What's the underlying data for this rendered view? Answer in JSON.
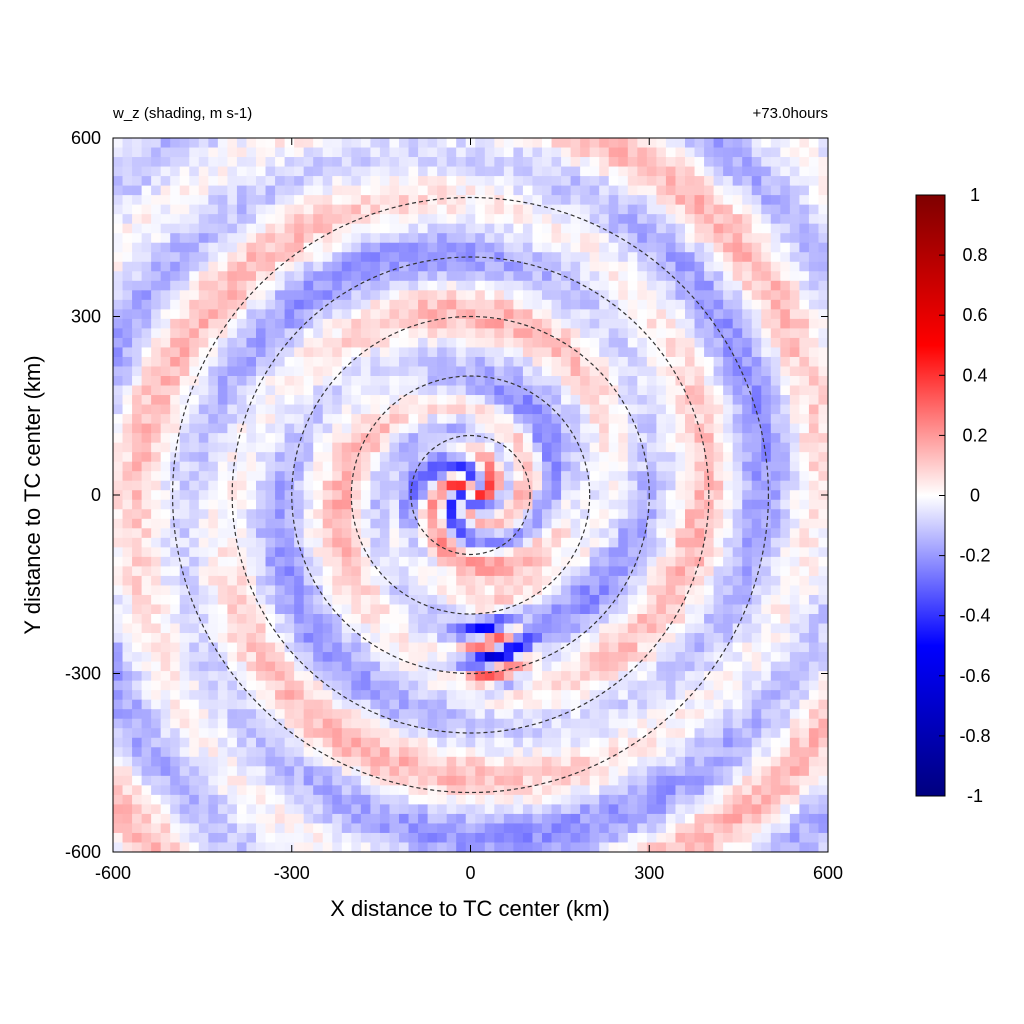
{
  "chart_data": {
    "type": "heatmap",
    "title_left": "w_z (shading, m s-1)",
    "title_right": "+73.0hours",
    "xlabel": "X distance to TC center (km)",
    "ylabel": "Y distance to TC center (km)",
    "xlim": [
      -600,
      600
    ],
    "ylim": [
      -600,
      600
    ],
    "xticks": [
      -600,
      -300,
      0,
      300,
      600
    ],
    "yticks": [
      -600,
      -300,
      0,
      300,
      600
    ],
    "xtick_labels": [
      "-600",
      "-300",
      "0",
      "300",
      "600"
    ],
    "ytick_labels": [
      "-600",
      "-300",
      "0",
      "300",
      "600"
    ],
    "grid": false,
    "field": "w_z",
    "units": "m s-1",
    "colorbar": {
      "min": -1,
      "max": 1,
      "ticks": [
        1,
        0.8,
        0.6,
        0.4,
        0.2,
        0,
        -0.2,
        -0.4,
        -0.6,
        -0.8,
        -1
      ],
      "tick_labels": [
        "1",
        "0.8",
        "0.6",
        "0.4",
        "0.2",
        "0",
        "-0.2",
        "-0.4",
        "-0.6",
        "-0.8",
        "-1"
      ],
      "colors": {
        "min": "#00007f",
        "low": "#0000ff",
        "zero": "#ffffff",
        "high": "#ff0000",
        "max": "#7f0000"
      }
    },
    "range_rings_km": [
      100,
      200,
      300,
      400,
      500
    ],
    "ring_color": "#333333"
  }
}
